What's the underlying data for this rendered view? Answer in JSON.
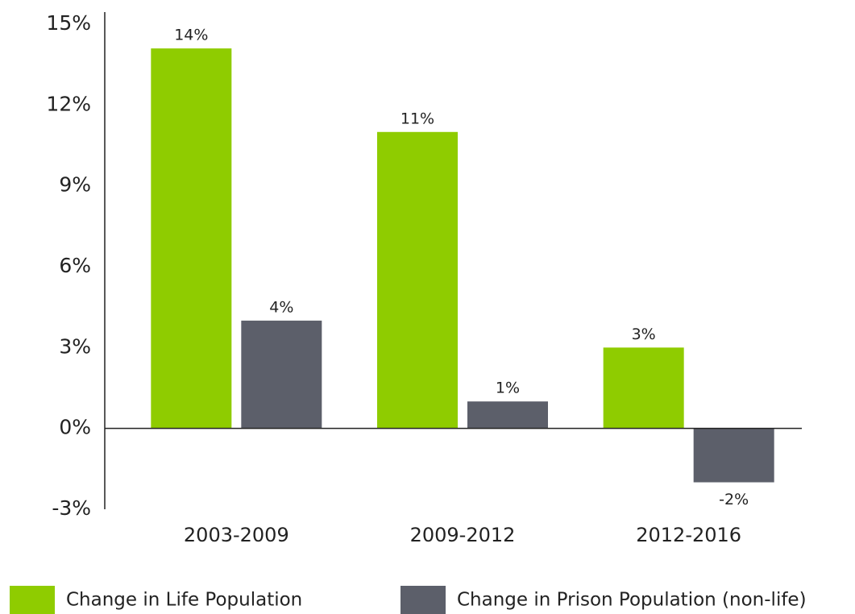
{
  "chart_data": {
    "type": "bar",
    "categories": [
      "2003-2009",
      "2009-2012",
      "2012-2016"
    ],
    "series": [
      {
        "name": "Change in Life Population",
        "color": "#8fcc00",
        "values": [
          14.1,
          11,
          3
        ],
        "value_labels": [
          "14%",
          "11%",
          "3%"
        ]
      },
      {
        "name": "Change in Prison Population (non-life)",
        "color": "#5c5f6a",
        "values": [
          4,
          1,
          -2
        ],
        "value_labels": [
          "4%",
          "1%",
          "-2%"
        ]
      }
    ],
    "ylim": [
      -3,
      15
    ],
    "yticks": [
      {
        "value": -3,
        "label": "-3%"
      },
      {
        "value": 0,
        "label": "0%"
      },
      {
        "value": 3,
        "label": "3%"
      },
      {
        "value": 6,
        "label": "6%"
      },
      {
        "value": 9,
        "label": "9%"
      },
      {
        "value": 12,
        "label": "12%"
      },
      {
        "value": 15,
        "label": "15%"
      }
    ],
    "grid": false
  }
}
